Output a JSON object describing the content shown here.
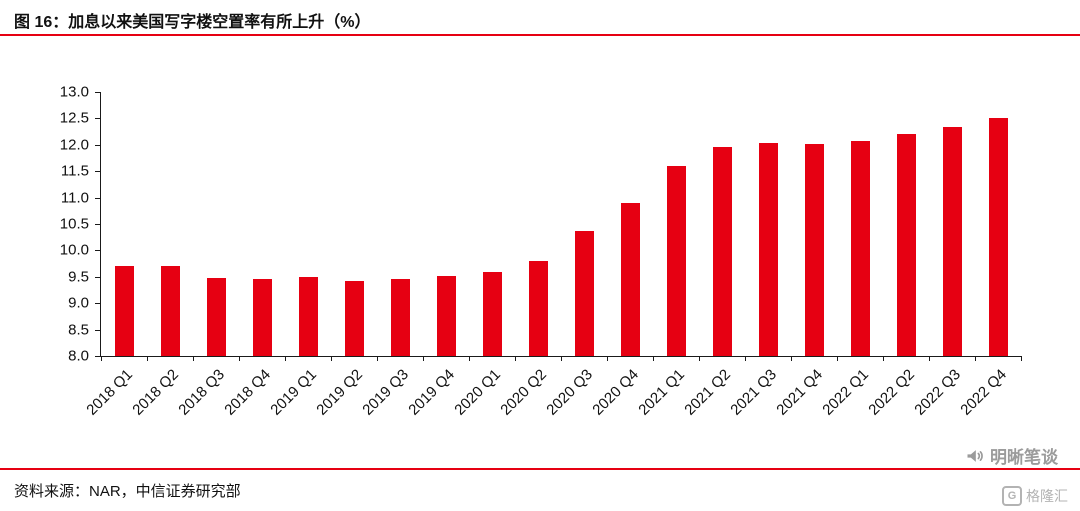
{
  "header": {
    "title": "图 16：加息以来美国写字楼空置率有所上升（%）"
  },
  "chart_data": {
    "type": "bar",
    "title": "图 16：加息以来美国写字楼空置率有所上升（%）",
    "categories": [
      "2018 Q1",
      "2018 Q2",
      "2018 Q3",
      "2018 Q4",
      "2019 Q1",
      "2019 Q2",
      "2019 Q3",
      "2019 Q4",
      "2020 Q1",
      "2020 Q2",
      "2020 Q3",
      "2020 Q4",
      "2021 Q1",
      "2021 Q2",
      "2021 Q3",
      "2021 Q4",
      "2022 Q1",
      "2022 Q2",
      "2022 Q3",
      "2022 Q4"
    ],
    "values": [
      9.7,
      9.7,
      9.47,
      9.46,
      9.5,
      9.43,
      9.46,
      9.51,
      9.6,
      9.8,
      10.36,
      10.9,
      11.59,
      11.96,
      12.03,
      12.01,
      12.08,
      12.21,
      12.34,
      12.5
    ],
    "xlabel": "",
    "ylabel": "",
    "ylim": [
      8.0,
      13.0
    ],
    "ytick_step": 0.5,
    "grid": false,
    "legend_position": "none",
    "bar_color": "#e60012"
  },
  "footer": {
    "source": "资料来源：NAR，中信证券研究部"
  },
  "watermarks": {
    "wechat_name": "明晰笔谈",
    "site_name": "格隆汇",
    "site_logo_letter": "G"
  },
  "colors": {
    "accent": "#e60012",
    "watermark_gray": "#9b9b9b"
  }
}
